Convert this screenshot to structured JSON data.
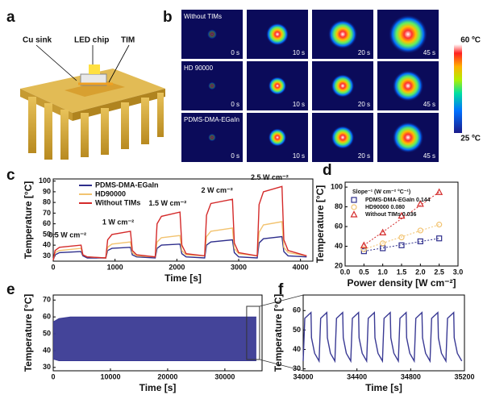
{
  "panel_labels": [
    "a",
    "b",
    "c",
    "d",
    "e",
    "f"
  ],
  "panel_a": {
    "labels": [
      "Cu sink",
      "LED chip",
      "TIM"
    ]
  },
  "panel_b": {
    "rows": [
      {
        "label": "Without TIMs",
        "times": [
          "0 s",
          "10 s",
          "20 s",
          "45 s"
        ]
      },
      {
        "label": "HD 90000",
        "times": [
          "0 s",
          "10 s",
          "20 s",
          "45 s"
        ]
      },
      {
        "label": "PDMS-DMA-EGaIn",
        "times": [
          "0 s",
          "10 s",
          "20 s",
          "45 s"
        ]
      }
    ],
    "colorbar": {
      "max_label": "60 ºC",
      "min_label": "25 ºC"
    }
  },
  "chart_data": [
    {
      "type": "line",
      "xlabel": "Time [s]",
      "ylabel": "Temperature [°C]",
      "x": [
        0,
        30,
        100,
        450,
        480,
        550,
        850,
        880,
        950,
        1250,
        1280,
        1350,
        1650,
        1680,
        1750,
        2050,
        2080,
        2150,
        2450,
        2480,
        2550,
        2900,
        2930,
        3000,
        3300,
        3330,
        3400,
        3700,
        3730,
        3800,
        4100
      ],
      "series": [
        {
          "name": "PDMS-DMA-EGaIn",
          "color": "#2e2e8c",
          "values": [
            26,
            31,
            33,
            34,
            30,
            28,
            28,
            35,
            37,
            38,
            31,
            29,
            28,
            37,
            40,
            41,
            32,
            29,
            28,
            40,
            43,
            45,
            33,
            29,
            28,
            42,
            46,
            48,
            34,
            30,
            29
          ]
        },
        {
          "name": "HD90000",
          "color": "#f2c370",
          "values": [
            26,
            33,
            35,
            37,
            31,
            29,
            28,
            38,
            41,
            43,
            33,
            30,
            29,
            43,
            47,
            49,
            35,
            31,
            30,
            48,
            53,
            56,
            37,
            32,
            30,
            52,
            59,
            62,
            38,
            33,
            30
          ]
        },
        {
          "name": "Without TIMs",
          "color": "#d42a2a",
          "values": [
            26,
            35,
            38,
            40,
            31,
            29,
            28,
            45,
            50,
            53,
            35,
            31,
            29,
            60,
            67,
            71,
            40,
            32,
            30,
            68,
            79,
            83,
            42,
            33,
            30,
            78,
            90,
            95,
            45,
            35,
            30
          ]
        }
      ],
      "annotations": [
        {
          "text": "0.5 W cm⁻²",
          "x": 230,
          "y": 49
        },
        {
          "text": "1 W cm⁻²",
          "x": 1050,
          "y": 61
        },
        {
          "text": "1.5 W cm⁻²",
          "x": 1850,
          "y": 79
        },
        {
          "text": "2 W cm⁻²",
          "x": 2650,
          "y": 91
        },
        {
          "text": "2.5 W cm⁻²",
          "x": 3500,
          "y": 103
        }
      ],
      "xlim": [
        0,
        4200
      ],
      "xticks": [
        0,
        1000,
        2000,
        3000,
        4000
      ],
      "ylim": [
        25,
        102
      ],
      "yticks": [
        30,
        40,
        50,
        60,
        70,
        80,
        90,
        100
      ]
    },
    {
      "type": "scatter",
      "xlabel": "Power density [W cm⁻²]",
      "ylabel": "Temperature [°C]",
      "legend_title": "Slope⁻¹ (W cm⁻² °C⁻¹)",
      "x": [
        0.5,
        1,
        1.5,
        2,
        2.5
      ],
      "series": [
        {
          "name": "PDMS-DMA-EGaIn 0.144",
          "color": "#2e2e8c",
          "marker": "square",
          "values": [
            35,
            38,
            41,
            45,
            48
          ]
        },
        {
          "name": "HD90000 0.080",
          "color": "#f2c370",
          "marker": "circle",
          "values": [
            37,
            43,
            49,
            56,
            62
          ]
        },
        {
          "name": "Without TIMs 0.036",
          "color": "#d42a2a",
          "marker": "triangle",
          "values": [
            41,
            54,
            71,
            83,
            95
          ]
        }
      ],
      "xlim": [
        0,
        3
      ],
      "xticks": [
        {
          "value": 0,
          "label": "0.0"
        },
        {
          "value": 0.5,
          "label": "0.5"
        },
        {
          "value": 1,
          "label": "1.0"
        },
        {
          "value": 1.5,
          "label": "1.5"
        },
        {
          "value": 2,
          "label": "2.0"
        },
        {
          "value": 2.5,
          "label": "2.5"
        },
        {
          "value": 3,
          "label": "3.0"
        }
      ],
      "ylim": [
        20,
        105
      ],
      "yticks": [
        20,
        40,
        60,
        80,
        100
      ]
    },
    {
      "type": "band",
      "xlabel": "Time [s]",
      "ylabel": "Temperature [°C]",
      "x": [
        0,
        1000,
        3000,
        10000,
        20000,
        30000,
        35500
      ],
      "series": [
        {
          "color": "#3a3a94",
          "values": [
            57,
            59,
            60,
            60,
            60,
            60,
            60
          ]
        },
        {
          "color": "#3a3a94",
          "values": [
            35,
            34,
            34,
            34,
            34,
            34,
            34
          ]
        }
      ],
      "xlim": [
        0,
        36500
      ],
      "xticks": [
        0,
        10000,
        20000,
        30000
      ],
      "ylim": [
        28,
        73
      ],
      "yticks": [
        30,
        40,
        50,
        60,
        70
      ]
    },
    {
      "type": "line",
      "xlabel": "Time [s]",
      "ylabel": "Temperature [°C]",
      "x": [
        34000,
        34012,
        34058,
        34062,
        34085,
        34118,
        34130,
        34176,
        34180,
        34203,
        34236,
        34248,
        34294,
        34298,
        34321,
        34354,
        34366,
        34412,
        34416,
        34439,
        34472,
        34484,
        34530,
        34534,
        34557,
        34590,
        34602,
        34648,
        34652,
        34675,
        34708,
        34720,
        34766,
        34770,
        34793,
        34826,
        34838,
        34884,
        34888,
        34911,
        34944,
        34956,
        35002,
        35006,
        35029,
        35062,
        35074,
        35120,
        35124,
        35147,
        35180
      ],
      "series": [
        {
          "color": "#3a3a94",
          "values": [
            34,
            56,
            59,
            46,
            38,
            34,
            56,
            59,
            46,
            38,
            34,
            56,
            59,
            46,
            38,
            34,
            56,
            59,
            46,
            38,
            34,
            56,
            59,
            46,
            38,
            34,
            56,
            59,
            46,
            38,
            34,
            56,
            59,
            46,
            38,
            34,
            56,
            59,
            46,
            38,
            34,
            56,
            59,
            46,
            38,
            34,
            56,
            59,
            46,
            38,
            34
          ]
        }
      ],
      "xlim": [
        34000,
        35200
      ],
      "xticks": [
        34000,
        34400,
        34800,
        35200
      ],
      "ylim": [
        29,
        68
      ],
      "yticks": [
        30,
        40,
        50,
        60
      ]
    }
  ]
}
